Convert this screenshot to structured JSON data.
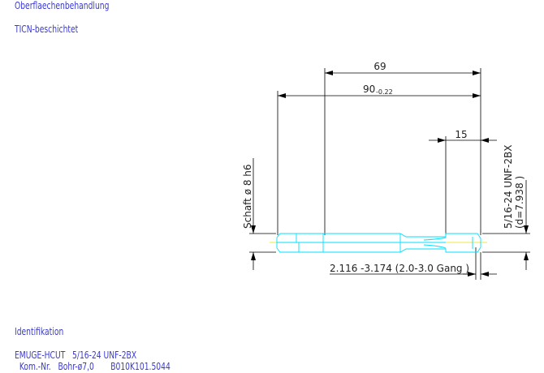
{
  "header": {
    "surface_label": "Oberflaechenbehandlung",
    "surface_value": "TICN-beschichtet"
  },
  "drawing": {
    "dim_69": "69",
    "dim_90": "90",
    "dim_90_tol": "-0.22",
    "dim_15": "15",
    "shank_label": "Schaft ø 8 h6",
    "thread_label": "5/16-24 UNF-2BX",
    "thread_diameter": "(d=7.938 )",
    "chamfer_label": "2.116  -3.174 (2.0-3.0 Gang  )",
    "colors": {
      "tool_outline": "#00e0ff",
      "centerline": "#e8e000",
      "dimension": "#000000",
      "text": "#3a3ad0"
    }
  },
  "footer": {
    "ident_label": "Identifikation",
    "line1": "EMUGE-HCUT   5/16-24 UNF-2BX",
    "line2": "  Kom.-Nr.   Bohr-ø7,0       B010K101.5044"
  }
}
